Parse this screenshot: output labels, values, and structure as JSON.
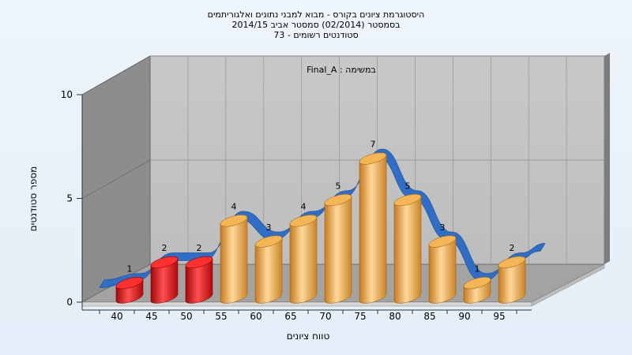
{
  "chart_data": {
    "type": "bar",
    "title_lines": [
      "היסטוגרמת ציונים בקורס - מבוא למבני נתונים ואלגוריתמים",
      "בסמסטר (02/2014) סמסטר אביב 2014/15",
      "סטודנטים רשומים - 73"
    ],
    "inner_label": "במשימה : Final_A",
    "xlabel": "טווח ציונים",
    "ylabel": "מספר סטודנטים",
    "categories": [
      "40",
      "45",
      "50",
      "55",
      "60",
      "65",
      "70",
      "75",
      "80",
      "85",
      "90",
      "95"
    ],
    "values": [
      1,
      2,
      2,
      4,
      3,
      4,
      5,
      7,
      5,
      3,
      1,
      2
    ],
    "bar_colors": [
      "#e01010",
      "#e01010",
      "#e01010",
      "#f0a640",
      "#f0a640",
      "#f0a640",
      "#f0a640",
      "#f0a640",
      "#f0a640",
      "#f0a640",
      "#f0a640",
      "#f0a640"
    ],
    "curve_color": "#2f6ec4",
    "ylim": [
      0,
      10
    ],
    "yticks": [
      0,
      5,
      10
    ],
    "grid": true
  }
}
